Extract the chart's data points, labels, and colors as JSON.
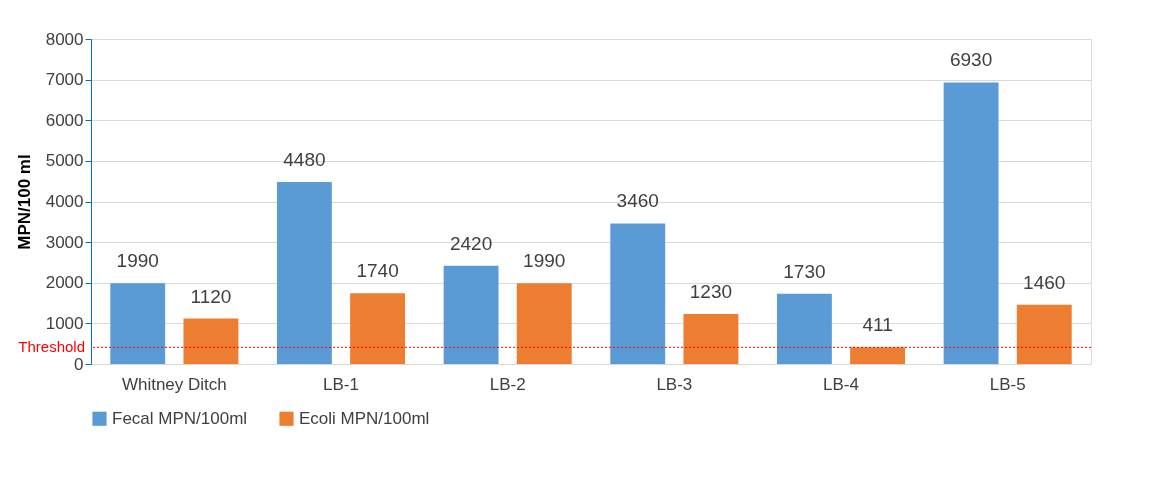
{
  "chart_data": {
    "type": "bar",
    "ylabel": "MPN/100 ml",
    "categories": [
      "Whitney Ditch",
      "LB-1",
      "LB-2",
      "LB-3",
      "LB-4",
      "LB-5"
    ],
    "series": [
      {
        "name": "Fecal MPN/100ml",
        "color": "#5b9bd5",
        "values": [
          1990,
          4480,
          2420,
          3460,
          1730,
          6930
        ]
      },
      {
        "name": "Ecoli MPN/100ml",
        "color": "#ed7d31",
        "values": [
          1120,
          1740,
          1990,
          1230,
          411,
          1460
        ]
      }
    ],
    "ylim": [
      0,
      8000
    ],
    "yticks": [
      0,
      1000,
      2000,
      3000,
      4000,
      5000,
      6000,
      7000,
      8000
    ],
    "grid": "y",
    "legend": "bottom",
    "data_labels": true,
    "ref_lines": [
      {
        "axis": "y",
        "value": 410,
        "label": "Threshold",
        "color": "#ff0000",
        "line_style": "dotted"
      }
    ]
  }
}
